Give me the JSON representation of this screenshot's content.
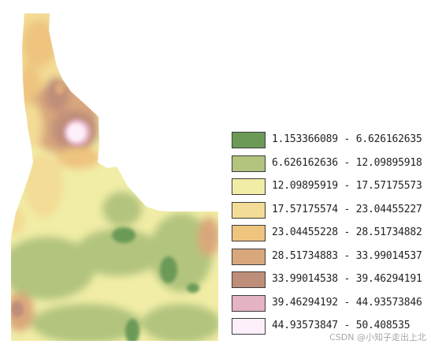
{
  "legend": {
    "classes": [
      {
        "range": "1.153366089 - 6.626162635",
        "color": "#6b9a57"
      },
      {
        "range": "6.626162636 - 12.09895918",
        "color": "#b2c47e"
      },
      {
        "range": "12.09895919 - 17.57175573",
        "color": "#f1eda6"
      },
      {
        "range": "17.57175574 - 23.04455227",
        "color": "#f3dc95"
      },
      {
        "range": "23.04455228 - 28.51734882",
        "color": "#eec47f"
      },
      {
        "range": "28.51734883 - 33.99014537",
        "color": "#d9a77c"
      },
      {
        "range": "33.99014538 - 39.46294191",
        "color": "#bf8e7a"
      },
      {
        "range": "39.46294192 - 44.93573846",
        "color": "#e4b3c4"
      },
      {
        "range": "44.93573847 - 50.408535",
        "color": "#fdf0fa"
      }
    ]
  },
  "watermark": "CSDN @小知子走出上北"
}
